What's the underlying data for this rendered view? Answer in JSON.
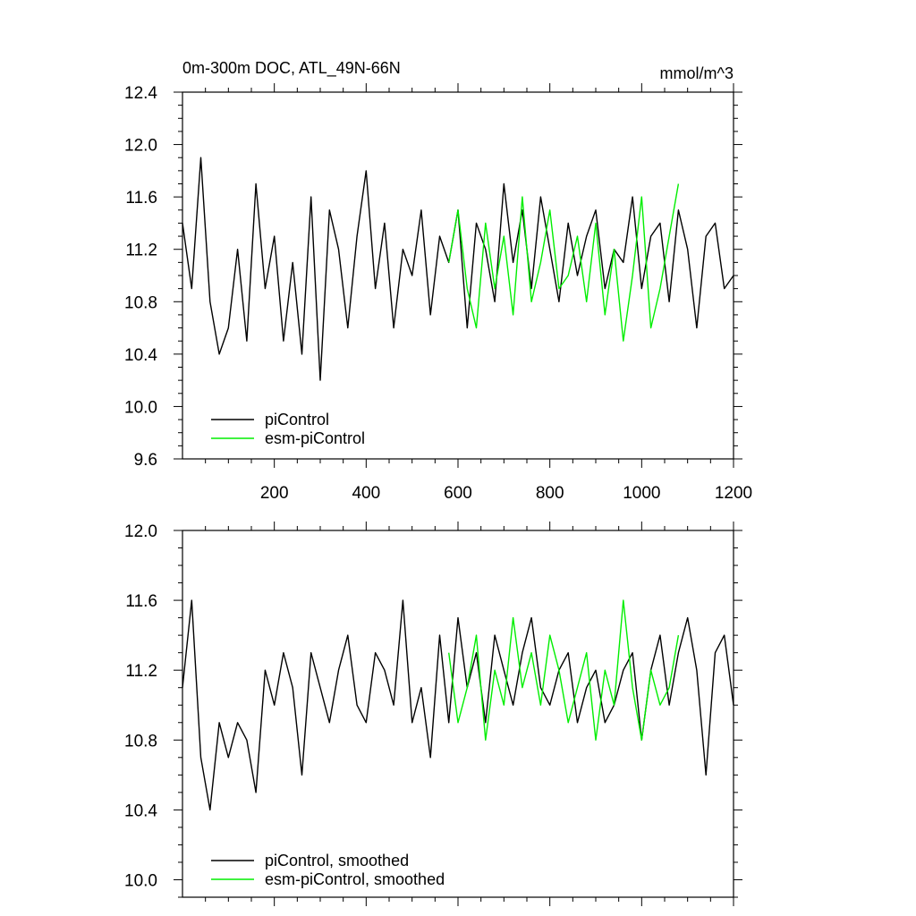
{
  "colors": {
    "picontrol": "#000000",
    "esm": "#00ee00",
    "axis": "#000000"
  },
  "chart_data": [
    {
      "type": "line",
      "title": "0m-300m DOC, ATL_49N-66N",
      "units": "mmol/m^3",
      "xlim": [
        0,
        1200
      ],
      "ylim": [
        9.6,
        12.4
      ],
      "xticks": [
        "200",
        "400",
        "600",
        "800",
        "1000",
        "1200"
      ],
      "yticks": [
        "9.6",
        "10.0",
        "10.4",
        "10.8",
        "11.2",
        "11.6",
        "12.0",
        "12.4"
      ],
      "legend": "bottom-left",
      "grid": false,
      "series": [
        {
          "name": "piControl",
          "color": "black",
          "x_start": 0,
          "x_step": 20,
          "values": [
            11.4,
            10.9,
            11.9,
            10.8,
            10.4,
            10.6,
            11.2,
            10.5,
            11.7,
            10.9,
            11.3,
            10.5,
            11.1,
            10.4,
            11.6,
            10.2,
            11.5,
            11.2,
            10.6,
            11.3,
            11.8,
            10.9,
            11.4,
            10.6,
            11.2,
            11.0,
            11.5,
            10.7,
            11.3,
            11.1,
            11.5,
            10.6,
            11.4,
            11.2,
            10.8,
            11.7,
            11.1,
            11.5,
            10.9,
            11.6,
            11.2,
            10.8,
            11.4,
            11.0,
            11.3,
            11.5,
            10.9,
            11.2,
            11.1,
            11.6,
            10.9,
            11.3,
            11.4,
            10.8,
            11.5,
            11.2,
            10.6,
            11.3,
            11.4,
            10.9,
            11.0
          ]
        },
        {
          "name": "esm-piControl",
          "color": "green",
          "x_start": 580,
          "x_step": 20,
          "values": [
            11.1,
            11.5,
            10.9,
            10.6,
            11.4,
            10.9,
            11.3,
            10.7,
            11.6,
            10.8,
            11.1,
            11.5,
            10.9,
            11.0,
            11.3,
            10.8,
            11.4,
            10.7,
            11.2,
            10.5,
            11.0,
            11.6,
            10.6,
            10.9,
            11.3,
            11.7
          ]
        }
      ]
    },
    {
      "type": "line",
      "xlim": [
        0,
        1200
      ],
      "ylim": [
        9.9,
        12.0
      ],
      "yticks": [
        "10.0",
        "10.4",
        "10.8",
        "11.2",
        "11.6",
        "12.0"
      ],
      "legend": "bottom-left",
      "grid": false,
      "series": [
        {
          "name": "piControl, smoothed",
          "color": "black",
          "x_start": 0,
          "x_step": 20,
          "values": [
            11.1,
            11.6,
            10.7,
            10.4,
            10.9,
            10.7,
            10.9,
            10.8,
            10.5,
            11.2,
            11.0,
            11.3,
            11.1,
            10.6,
            11.3,
            11.1,
            10.9,
            11.2,
            11.4,
            11.0,
            10.9,
            11.3,
            11.2,
            11.0,
            11.6,
            10.9,
            11.1,
            10.7,
            11.4,
            10.9,
            11.5,
            11.1,
            11.3,
            10.9,
            11.4,
            11.2,
            11.0,
            11.3,
            11.5,
            11.1,
            11.0,
            11.2,
            11.3,
            10.9,
            11.1,
            11.2,
            10.9,
            11.0,
            11.2,
            11.3,
            10.8,
            11.2,
            11.4,
            11.0,
            11.3,
            11.5,
            11.2,
            10.6,
            11.3,
            11.4,
            11.0
          ]
        },
        {
          "name": "esm-piControl, smoothed",
          "color": "green",
          "x_start": 580,
          "x_step": 20,
          "values": [
            11.3,
            10.9,
            11.1,
            11.4,
            10.8,
            11.2,
            11.0,
            11.5,
            11.1,
            11.3,
            11.0,
            11.4,
            11.2,
            10.9,
            11.1,
            11.3,
            10.8,
            11.2,
            11.0,
            11.6,
            11.1,
            10.8,
            11.2,
            11.0,
            11.1,
            11.4
          ]
        }
      ]
    }
  ]
}
